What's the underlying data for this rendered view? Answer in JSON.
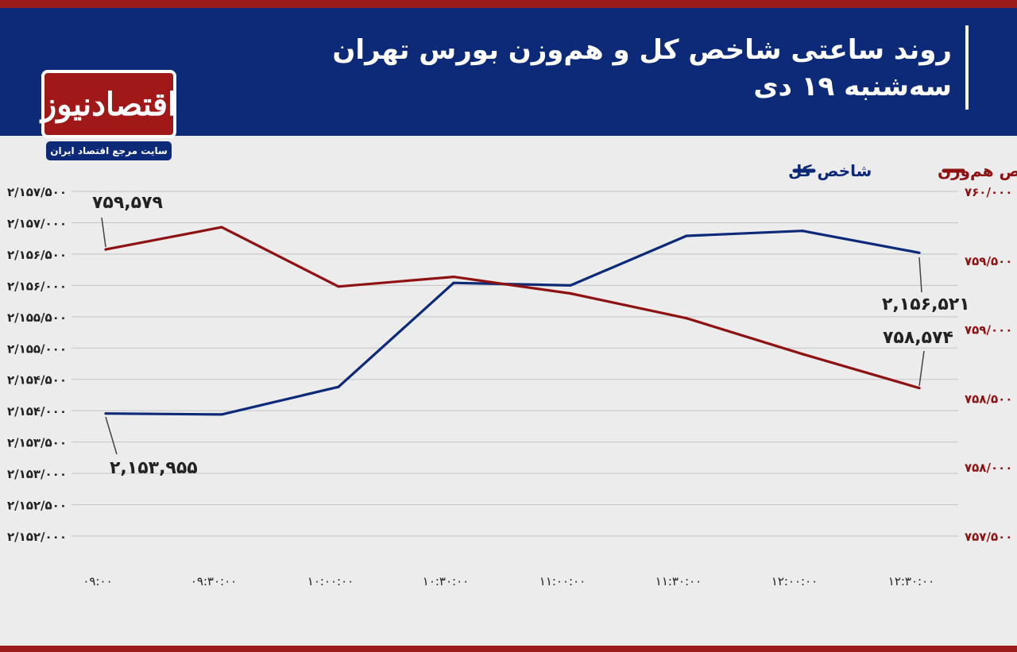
{
  "header": {
    "title": "روند ساعتی شاخص کل و هم‌وزن بورس تهران",
    "subtitle": "سه‌شنبه ۱۹ دی"
  },
  "logo": {
    "name": "اقتصادنیوز",
    "tagline": "سایت مرجع اقتصاد ایران"
  },
  "colors": {
    "header_bg": "#0d2a78",
    "accent_red": "#9b1b1b",
    "total_line": "#0d2a78",
    "equal_line": "#8e1212"
  },
  "chart_data": {
    "type": "line",
    "x": [
      "۰۹:۰۰",
      "۰۹:۳۰:۰۰",
      "۱۰:۰۰:۰۰",
      "۱۰:۳۰:۰۰",
      "۱۱:۰۰:۰۰",
      "۱۱:۳۰:۰۰",
      "۱۲:۰۰:۰۰",
      "۱۲:۳۰:۰۰"
    ],
    "legend": {
      "placement": "top-right"
    },
    "grid": true,
    "series": [
      {
        "name": "شاخص کل",
        "axis": "left",
        "values": [
          2153955,
          2153940,
          2154380,
          2156040,
          2156000,
          2156790,
          2156870,
          2156521
        ]
      },
      {
        "name": "شاخص هم‌وزن",
        "axis": "right",
        "values": [
          759.579,
          759.74,
          759.31,
          759.38,
          759.26,
          759.08,
          758.82,
          758.574
        ]
      }
    ],
    "left_axis": {
      "min": 2152000,
      "max": 2157500,
      "ticks": [
        "۲/۱۵۲/۰۰۰",
        "۲/۱۵۲/۵۰۰",
        "۲/۱۵۳/۰۰۰",
        "۲/۱۵۳/۵۰۰",
        "۲/۱۵۴/۰۰۰",
        "۲/۱۵۴/۵۰۰",
        "۲/۱۵۵/۰۰۰",
        "۲/۱۵۵/۵۰۰",
        "۲/۱۵۶/۰۰۰",
        "۲/۱۵۶/۵۰۰",
        "۲/۱۵۷/۰۰۰",
        "۲/۱۵۷/۵۰۰"
      ]
    },
    "right_axis": {
      "min": 757.5,
      "max": 760,
      "ticks": [
        "۷۵۷/۵۰۰",
        "۷۵۸/۰۰۰",
        "۷۵۸/۵۰۰",
        "۷۵۹/۰۰۰",
        "۷۵۹/۵۰۰",
        "۷۶۰/۰۰۰"
      ]
    },
    "annotations": [
      {
        "series": 1,
        "point": 0,
        "text": "۷۵۹,۵۷۹"
      },
      {
        "series": 0,
        "point": 0,
        "text": "۲,۱۵۳,۹۵۵"
      },
      {
        "series": 0,
        "point": 7,
        "text": "۲,۱۵۶,۵۲۱"
      },
      {
        "series": 1,
        "point": 7,
        "text": "۷۵۸,۵۷۴"
      }
    ]
  }
}
